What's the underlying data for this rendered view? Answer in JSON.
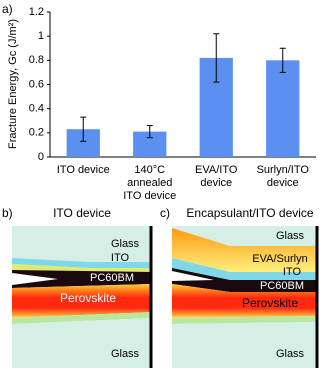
{
  "chart_data": {
    "type": "bar",
    "panel_label": "a)",
    "y_label": "Fracture Energy, Gc (J/m²)",
    "categories": [
      [
        "ITO device"
      ],
      [
        "140°C",
        "annealed",
        "ITO device"
      ],
      [
        "EVA/ITO",
        "device"
      ],
      [
        "Surlyn/ITO",
        "device"
      ]
    ],
    "values": [
      0.23,
      0.21,
      0.82,
      0.8
    ],
    "errors": [
      0.1,
      0.05,
      0.2,
      0.1
    ],
    "color": "#5b8ff0",
    "ylim": [
      0,
      1.2
    ],
    "yticks": [
      0,
      0.2,
      0.4,
      0.6,
      0.8,
      1,
      1.2
    ],
    "grid": false
  },
  "diagrams": [
    {
      "label": "b)",
      "title": "ITO device",
      "layers": [
        "Glass",
        "ITO",
        "PC60BM",
        "Perovskite",
        "Glass"
      ]
    },
    {
      "label": "c)",
      "title": "Encapsulant/ITO device",
      "layers": [
        "Glass",
        "EVA/Surlyn",
        "ITO",
        "PC60BM",
        "Perovskite",
        "Glass"
      ]
    }
  ]
}
